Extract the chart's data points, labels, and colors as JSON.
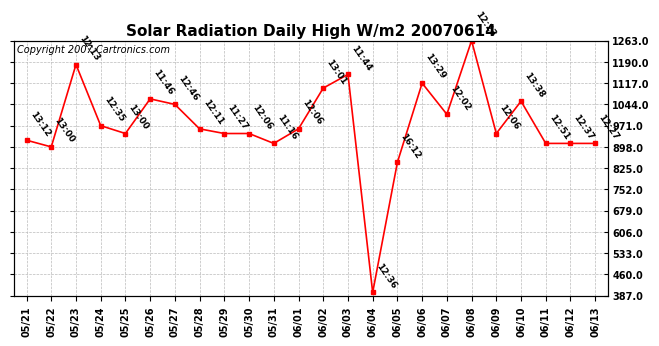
{
  "title": "Solar Radiation Daily High W/m2 20070614",
  "copyright": "Copyright 2007 Cartronics.com",
  "dates": [
    "05/21",
    "05/22",
    "05/23",
    "05/24",
    "05/25",
    "05/26",
    "05/27",
    "05/28",
    "05/29",
    "05/30",
    "05/31",
    "06/01",
    "06/02",
    "06/03",
    "06/04",
    "06/05",
    "06/06",
    "06/07",
    "06/08",
    "06/09",
    "06/10",
    "06/11",
    "06/12",
    "06/13"
  ],
  "values": [
    921,
    898,
    1181,
    971,
    944,
    1063,
    1044,
    960,
    944,
    944,
    910,
    960,
    1100,
    1147,
    398,
    845,
    1117,
    1010,
    1263,
    944,
    1055,
    910,
    910,
    910
  ],
  "labels": [
    "13:12",
    "13:00",
    "12:13",
    "12:35",
    "13:00",
    "11:46",
    "12:46",
    "12:11",
    "11:27",
    "12:06",
    "11:16",
    "12:06",
    "13:01",
    "11:44",
    "12:36",
    "16:12",
    "13:29",
    "12:02",
    "12:23",
    "12:06",
    "13:38",
    "12:51",
    "12:37",
    "12:27"
  ],
  "ylim_min": 387.0,
  "ylim_max": 1263.0,
  "yticks": [
    387.0,
    460.0,
    533.0,
    606.0,
    679.0,
    752.0,
    825.0,
    898.0,
    971.0,
    1044.0,
    1117.0,
    1190.0,
    1263.0
  ],
  "line_color": "#ff0000",
  "marker_color": "#ff0000",
  "bg_color": "#ffffff",
  "grid_color": "#bbbbbb",
  "title_fontsize": 11,
  "label_fontsize": 6.5,
  "tick_fontsize": 7,
  "copyright_fontsize": 7
}
